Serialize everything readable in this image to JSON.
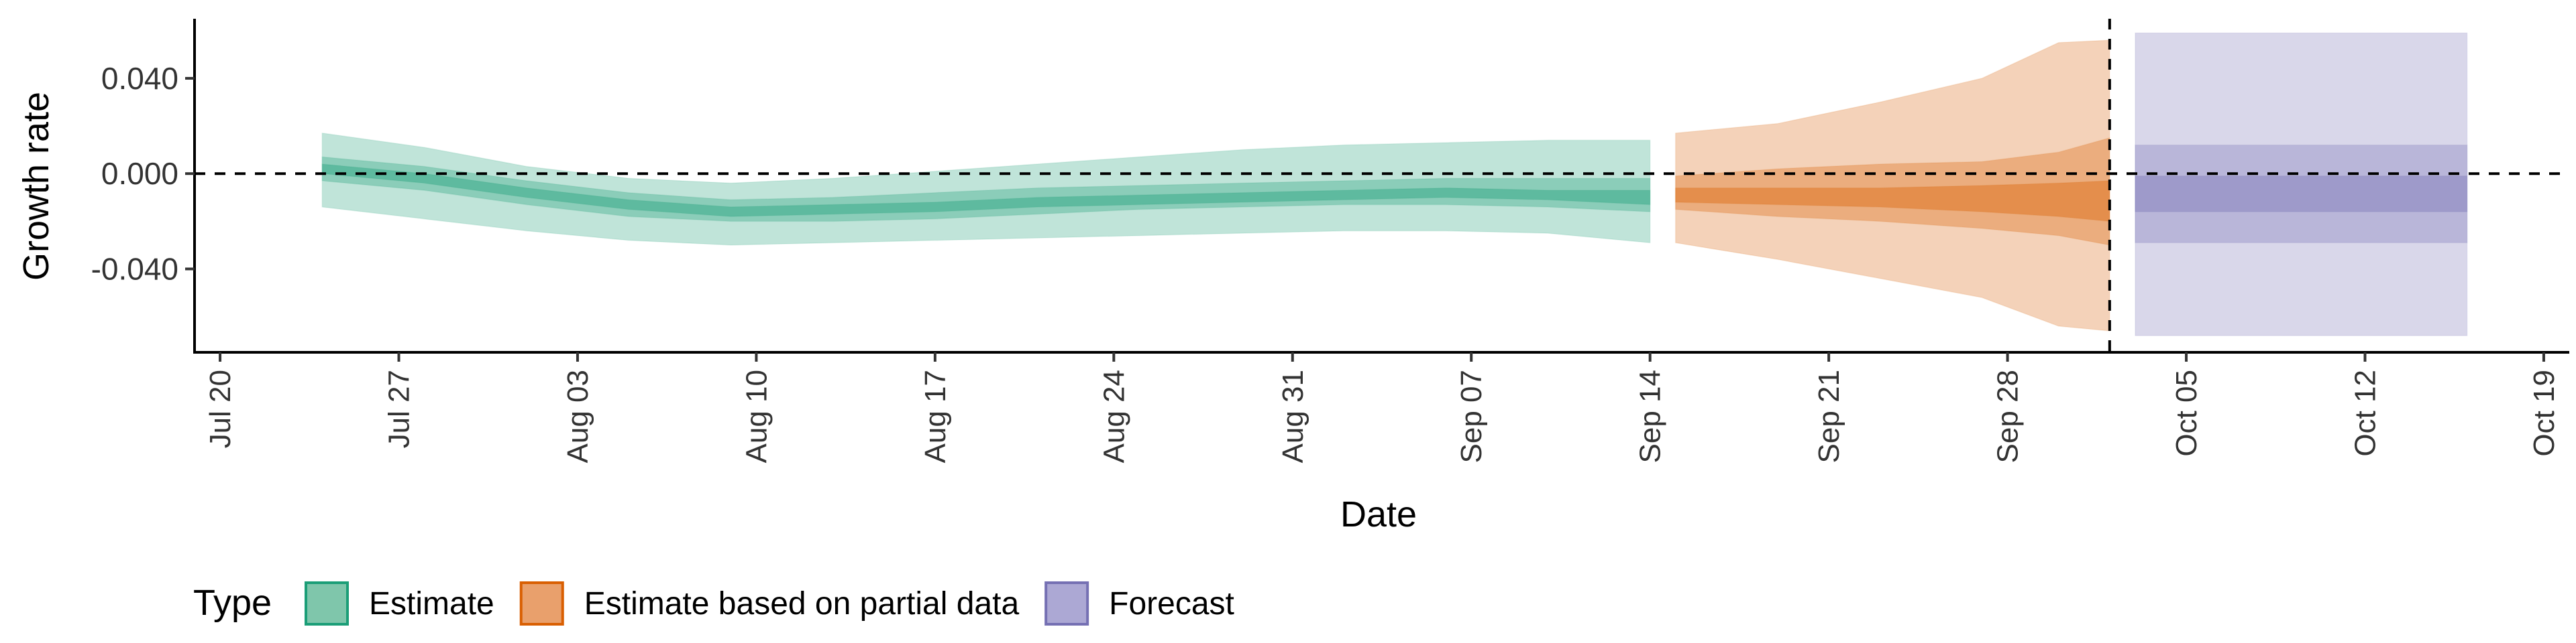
{
  "chart_data": {
    "type": "area",
    "xlabel": "Date",
    "ylabel": "Growth rate",
    "x_axis": {
      "kind": "date",
      "range": [
        "2020-07-19",
        "2020-10-20"
      ],
      "ticks": [
        {
          "date": "2020-07-20",
          "label": "Jul 20"
        },
        {
          "date": "2020-07-27",
          "label": "Jul 27"
        },
        {
          "date": "2020-08-03",
          "label": "Aug 03"
        },
        {
          "date": "2020-08-10",
          "label": "Aug 10"
        },
        {
          "date": "2020-08-17",
          "label": "Aug 17"
        },
        {
          "date": "2020-08-24",
          "label": "Aug 24"
        },
        {
          "date": "2020-08-31",
          "label": "Aug 31"
        },
        {
          "date": "2020-09-07",
          "label": "Sep 07"
        },
        {
          "date": "2020-09-14",
          "label": "Sep 14"
        },
        {
          "date": "2020-09-21",
          "label": "Sep 21"
        },
        {
          "date": "2020-09-28",
          "label": "Sep 28"
        },
        {
          "date": "2020-10-05",
          "label": "Oct 05"
        },
        {
          "date": "2020-10-12",
          "label": "Oct 12"
        },
        {
          "date": "2020-10-19",
          "label": "Oct 19"
        }
      ]
    },
    "y_axis": {
      "range": [
        -0.075,
        0.065
      ],
      "ticks": [
        {
          "value": 0.04,
          "label": "0.040"
        },
        {
          "value": 0.0,
          "label": "0.000"
        },
        {
          "value": -0.04,
          "label": "-0.040"
        }
      ]
    },
    "reference_lines": [
      {
        "axis": "y",
        "value": 0.0,
        "style": "dashed"
      },
      {
        "axis": "x",
        "date": "2020-10-02",
        "style": "dashed"
      }
    ],
    "legend": {
      "title": "Type",
      "position": "bottom-left",
      "entries": [
        {
          "label": "Estimate",
          "fill": "#7fc6ab",
          "stroke": "#1b9e77"
        },
        {
          "label": "Estimate based on partial data",
          "fill": "#e9a06c",
          "stroke": "#d95f02"
        },
        {
          "label": "Forecast",
          "fill": "#aca8d4",
          "stroke": "#7570b3"
        }
      ]
    },
    "series": [
      {
        "name": "Estimate",
        "color": "#1b9e77",
        "points": [
          {
            "date": "2020-07-24",
            "lower_90": -0.014,
            "lower_50": -0.003,
            "lower_20": 0.0,
            "upper_20": 0.004,
            "upper_50": 0.007,
            "upper_90": 0.017
          },
          {
            "date": "2020-07-28",
            "lower_90": -0.019,
            "lower_50": -0.007,
            "lower_20": -0.004,
            "upper_20": 0.0,
            "upper_50": 0.003,
            "upper_90": 0.011
          },
          {
            "date": "2020-08-01",
            "lower_90": -0.024,
            "lower_50": -0.013,
            "lower_20": -0.01,
            "upper_20": -0.006,
            "upper_50": -0.003,
            "upper_90": 0.003
          },
          {
            "date": "2020-08-05",
            "lower_90": -0.028,
            "lower_50": -0.018,
            "lower_20": -0.015,
            "upper_20": -0.011,
            "upper_50": -0.008,
            "upper_90": -0.002
          },
          {
            "date": "2020-08-09",
            "lower_90": -0.03,
            "lower_50": -0.02,
            "lower_20": -0.018,
            "upper_20": -0.014,
            "upper_50": -0.011,
            "upper_90": -0.004
          },
          {
            "date": "2020-08-13",
            "lower_90": -0.029,
            "lower_50": -0.02,
            "lower_20": -0.017,
            "upper_20": -0.013,
            "upper_50": -0.01,
            "upper_90": -0.002
          },
          {
            "date": "2020-08-17",
            "lower_90": -0.028,
            "lower_50": -0.019,
            "lower_20": -0.016,
            "upper_20": -0.012,
            "upper_50": -0.008,
            "upper_90": 0.001
          },
          {
            "date": "2020-08-21",
            "lower_90": -0.027,
            "lower_50": -0.017,
            "lower_20": -0.014,
            "upper_20": -0.01,
            "upper_50": -0.006,
            "upper_90": 0.004
          },
          {
            "date": "2020-08-25",
            "lower_90": -0.026,
            "lower_50": -0.015,
            "lower_20": -0.013,
            "upper_20": -0.009,
            "upper_50": -0.005,
            "upper_90": 0.007
          },
          {
            "date": "2020-08-29",
            "lower_90": -0.025,
            "lower_50": -0.014,
            "lower_20": -0.012,
            "upper_20": -0.008,
            "upper_50": -0.004,
            "upper_90": 0.01
          },
          {
            "date": "2020-09-02",
            "lower_90": -0.024,
            "lower_50": -0.013,
            "lower_20": -0.011,
            "upper_20": -0.007,
            "upper_50": -0.003,
            "upper_90": 0.012
          },
          {
            "date": "2020-09-06",
            "lower_90": -0.024,
            "lower_50": -0.013,
            "lower_20": -0.01,
            "upper_20": -0.006,
            "upper_50": -0.002,
            "upper_90": 0.013
          },
          {
            "date": "2020-09-10",
            "lower_90": -0.025,
            "lower_50": -0.014,
            "lower_20": -0.011,
            "upper_20": -0.007,
            "upper_50": -0.002,
            "upper_90": 0.014
          },
          {
            "date": "2020-09-14",
            "lower_90": -0.029,
            "lower_50": -0.016,
            "lower_20": -0.013,
            "upper_20": -0.007,
            "upper_50": -0.002,
            "upper_90": 0.014
          }
        ]
      },
      {
        "name": "Estimate based on partial data",
        "color": "#d95f02",
        "points": [
          {
            "date": "2020-09-15",
            "lower_90": -0.029,
            "lower_50": -0.015,
            "lower_20": -0.012,
            "upper_20": -0.006,
            "upper_50": -0.001,
            "upper_90": 0.017
          },
          {
            "date": "2020-09-19",
            "lower_90": -0.036,
            "lower_50": -0.018,
            "lower_20": -0.013,
            "upper_20": -0.006,
            "upper_50": 0.002,
            "upper_90": 0.021
          },
          {
            "date": "2020-09-23",
            "lower_90": -0.044,
            "lower_50": -0.02,
            "lower_20": -0.014,
            "upper_20": -0.006,
            "upper_50": 0.004,
            "upper_90": 0.03
          },
          {
            "date": "2020-09-27",
            "lower_90": -0.052,
            "lower_50": -0.023,
            "lower_20": -0.016,
            "upper_20": -0.005,
            "upper_50": 0.005,
            "upper_90": 0.04
          },
          {
            "date": "2020-09-30",
            "lower_90": -0.064,
            "lower_50": -0.026,
            "lower_20": -0.018,
            "upper_20": -0.004,
            "upper_50": 0.009,
            "upper_90": 0.055
          },
          {
            "date": "2020-10-02",
            "lower_90": -0.066,
            "lower_50": -0.03,
            "lower_20": -0.02,
            "upper_20": -0.003,
            "upper_50": 0.015,
            "upper_90": 0.056
          }
        ]
      },
      {
        "name": "Forecast",
        "color": "#7570b3",
        "points": [
          {
            "date": "2020-10-03",
            "lower_90": -0.068,
            "lower_50": -0.029,
            "lower_20": -0.016,
            "upper_20": -0.001,
            "upper_50": 0.012,
            "upper_90": 0.059
          },
          {
            "date": "2020-10-16",
            "lower_90": -0.068,
            "lower_50": -0.029,
            "lower_20": -0.016,
            "upper_20": -0.001,
            "upper_50": 0.012,
            "upper_90": 0.059
          }
        ]
      }
    ]
  }
}
